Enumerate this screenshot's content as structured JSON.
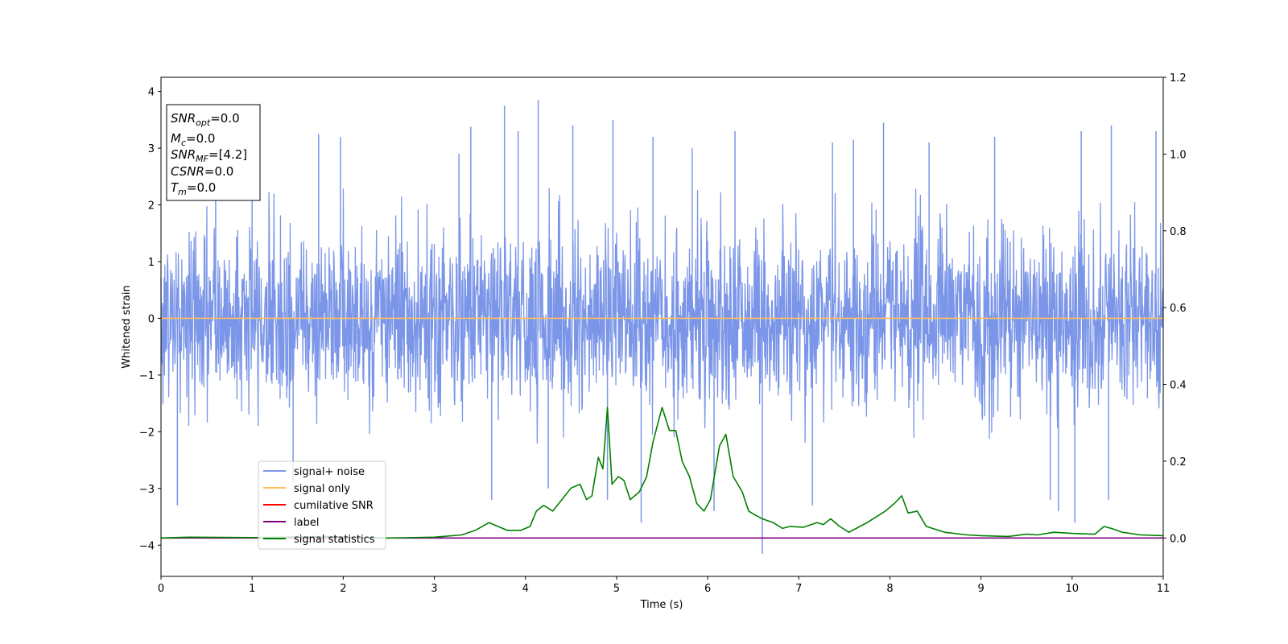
{
  "chart_data": {
    "type": "line",
    "xlabel": "Time (s)",
    "ylabel": "Whitened strain",
    "xlim": [
      0,
      11
    ],
    "ylim": [
      -4.55,
      4.25
    ],
    "y2lim": [
      -0.1,
      1.2
    ],
    "x_ticks": [
      "0",
      "1",
      "2",
      "3",
      "4",
      "5",
      "6",
      "7",
      "8",
      "9",
      "10",
      "11"
    ],
    "y_ticks": [
      "4",
      "3",
      "2",
      "1",
      "0",
      "−1",
      "−2",
      "−3",
      "−4"
    ],
    "y2_ticks": [
      "1.2",
      "1.0",
      "0.8",
      "0.6",
      "0.4",
      "0.2",
      "0.0"
    ],
    "grid": false,
    "legend_position": "lower-left",
    "info_box": {
      "snr_opt": {
        "symbol": "SNR",
        "sub": "opt",
        "value": "=0.0"
      },
      "mc": {
        "symbol": "M",
        "sub": "c",
        "value": "=0.0"
      },
      "snr_mf": {
        "symbol": "SNR",
        "sub": "MF",
        "value": "=[4.2]"
      },
      "csnr": {
        "symbol": "CSNR",
        "value": "=0.0"
      },
      "tm": {
        "symbol": "T",
        "sub": "m",
        "value": "=0.0"
      }
    },
    "series": [
      {
        "name": "signal+ noise",
        "color": "#7b96e8",
        "axis": "left",
        "description_values": {
          "mean": 0,
          "typical_range": [
            -2.3,
            2.3
          ],
          "max": 3.85,
          "min": -4.15
        },
        "spikes": [
          [
            0.18,
            -3.3
          ],
          [
            0.6,
            2.8
          ],
          [
            1.0,
            2.7
          ],
          [
            1.45,
            -2.9
          ],
          [
            1.73,
            3.25
          ],
          [
            1.97,
            3.2
          ],
          [
            3.27,
            2.9
          ],
          [
            3.4,
            3.38
          ],
          [
            3.63,
            -3.2
          ],
          [
            3.77,
            3.75
          ],
          [
            3.92,
            3.3
          ],
          [
            4.14,
            3.85
          ],
          [
            4.25,
            -3.0
          ],
          [
            4.52,
            3.4
          ],
          [
            4.9,
            -3.2
          ],
          [
            4.96,
            3.5
          ],
          [
            5.27,
            -3.6
          ],
          [
            5.4,
            3.2
          ],
          [
            5.83,
            3.0
          ],
          [
            6.07,
            -3.4
          ],
          [
            6.3,
            3.3
          ],
          [
            6.6,
            -4.15
          ],
          [
            7.15,
            -3.3
          ],
          [
            7.37,
            3.1
          ],
          [
            7.6,
            3.15
          ],
          [
            7.93,
            3.45
          ],
          [
            8.43,
            3.1
          ],
          [
            9.15,
            3.2
          ],
          [
            9.76,
            -3.2
          ],
          [
            9.85,
            -3.4
          ],
          [
            10.03,
            -3.6
          ],
          [
            10.1,
            3.3
          ],
          [
            10.43,
            3.4
          ],
          [
            10.4,
            -3.2
          ],
          [
            10.92,
            3.3
          ]
        ]
      },
      {
        "name": "signal only",
        "color": "#ffbe5c",
        "axis": "left",
        "x": [
          0,
          11
        ],
        "y": [
          0,
          0
        ]
      },
      {
        "name": "cumilative SNR",
        "color": "#ff0000",
        "axis": "left",
        "x": [],
        "y": []
      },
      {
        "name": "label",
        "color": "#800080",
        "axis": "right",
        "x": [
          0,
          11
        ],
        "y": [
          0,
          0
        ]
      },
      {
        "name": "signal statistics",
        "color": "#008000",
        "axis": "right",
        "x": [
          0,
          0.3,
          1.0,
          1.8,
          2.5,
          3.0,
          3.3,
          3.45,
          3.6,
          3.7,
          3.8,
          3.95,
          4.05,
          4.12,
          4.2,
          4.3,
          4.4,
          4.5,
          4.6,
          4.67,
          4.73,
          4.8,
          4.85,
          4.9,
          4.95,
          5.02,
          5.08,
          5.15,
          5.25,
          5.33,
          5.4,
          5.5,
          5.58,
          5.65,
          5.72,
          5.8,
          5.88,
          5.96,
          6.03,
          6.13,
          6.2,
          6.28,
          6.38,
          6.45,
          6.52,
          6.6,
          6.72,
          6.82,
          6.9,
          7.05,
          7.2,
          7.27,
          7.35,
          7.45,
          7.55,
          7.75,
          7.95,
          8.05,
          8.13,
          8.2,
          8.3,
          8.4,
          8.6,
          8.85,
          9.0,
          9.3,
          9.5,
          9.62,
          9.8,
          10.0,
          10.25,
          10.35,
          10.43,
          10.55,
          10.75,
          11.0
        ],
        "y": [
          0.0,
          0.002,
          0.001,
          0.004,
          0.0,
          0.002,
          0.008,
          0.02,
          0.04,
          0.03,
          0.02,
          0.02,
          0.03,
          0.07,
          0.085,
          0.07,
          0.1,
          0.13,
          0.14,
          0.1,
          0.11,
          0.21,
          0.18,
          0.34,
          0.14,
          0.16,
          0.15,
          0.1,
          0.12,
          0.16,
          0.25,
          0.34,
          0.28,
          0.28,
          0.2,
          0.16,
          0.09,
          0.07,
          0.1,
          0.24,
          0.27,
          0.16,
          0.12,
          0.07,
          0.06,
          0.05,
          0.04,
          0.025,
          0.03,
          0.028,
          0.04,
          0.035,
          0.05,
          0.03,
          0.015,
          0.04,
          0.07,
          0.09,
          0.11,
          0.065,
          0.07,
          0.03,
          0.015,
          0.008,
          0.006,
          0.004,
          0.01,
          0.008,
          0.015,
          0.012,
          0.01,
          0.03,
          0.025,
          0.015,
          0.008,
          0.006
        ]
      }
    ]
  }
}
